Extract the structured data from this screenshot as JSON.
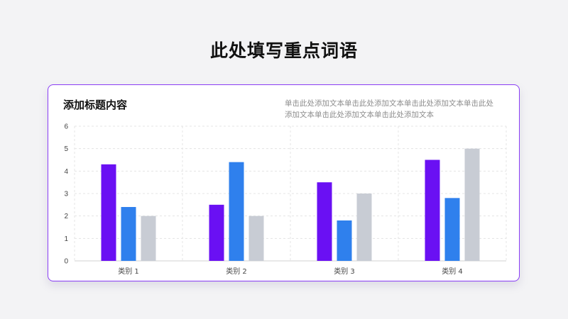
{
  "page": {
    "title": "此处填写重点词语"
  },
  "card": {
    "title": "添加标题内容",
    "description": "单击此处添加文本单击此处添加文本单击此处添加文本单击此处添加文本单击此处添加文本单击此处添加文本"
  },
  "colors": {
    "border": "#8a3df5",
    "series": [
      "#6a10f3",
      "#2f80ed",
      "#c8ccd4"
    ]
  },
  "chart_data": {
    "type": "bar",
    "categories": [
      "类别 1",
      "类别 2",
      "类别 3",
      "类别 4"
    ],
    "series": [
      {
        "values": [
          4.3,
          2.5,
          3.5,
          4.5
        ]
      },
      {
        "values": [
          2.4,
          4.4,
          1.8,
          2.8
        ]
      },
      {
        "values": [
          2.0,
          2.0,
          3.0,
          5.0
        ]
      }
    ],
    "ylim": [
      0,
      6
    ],
    "yticks": [
      0,
      1,
      2,
      3,
      4,
      5,
      6
    ],
    "grid": true,
    "legend": "none"
  }
}
